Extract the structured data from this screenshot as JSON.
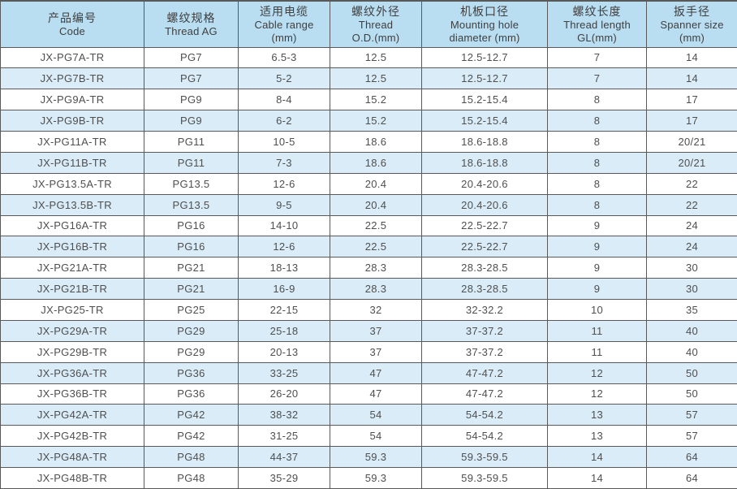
{
  "table": {
    "columns": [
      {
        "zh": "产品编号",
        "en": "Code"
      },
      {
        "zh": "螺纹规格",
        "en": "Thread  AG"
      },
      {
        "zh": "适用电缆",
        "en": "Cable range\n(mm)"
      },
      {
        "zh": "螺纹外径",
        "en": "Thread\nO.D.(mm)"
      },
      {
        "zh": "机板口径",
        "en": "Mounting hole\ndiameter (mm)"
      },
      {
        "zh": "螺纹长度",
        "en": "Thread length\nGL(mm)"
      },
      {
        "zh": "扳手径",
        "en": "Spanner size\n(mm)"
      }
    ],
    "rows": [
      [
        "JX-PG7A-TR",
        "PG7",
        "6.5-3",
        "12.5",
        "12.5-12.7",
        "7",
        "14"
      ],
      [
        "JX-PG7B-TR",
        "PG7",
        "5-2",
        "12.5",
        "12.5-12.7",
        "7",
        "14"
      ],
      [
        "JX-PG9A-TR",
        "PG9",
        "8-4",
        "15.2",
        "15.2-15.4",
        "8",
        "17"
      ],
      [
        "JX-PG9B-TR",
        "PG9",
        "6-2",
        "15.2",
        "15.2-15.4",
        "8",
        "17"
      ],
      [
        "JX-PG11A-TR",
        "PG11",
        "10-5",
        "18.6",
        "18.6-18.8",
        "8",
        "20/21"
      ],
      [
        "JX-PG11B-TR",
        "PG11",
        "7-3",
        "18.6",
        "18.6-18.8",
        "8",
        "20/21"
      ],
      [
        "JX-PG13.5A-TR",
        "PG13.5",
        "12-6",
        "20.4",
        "20.4-20.6",
        "8",
        "22"
      ],
      [
        "JX-PG13.5B-TR",
        "PG13.5",
        "9-5",
        "20.4",
        "20.4-20.6",
        "8",
        "22"
      ],
      [
        "JX-PG16A-TR",
        "PG16",
        "14-10",
        "22.5",
        "22.5-22.7",
        "9",
        "24"
      ],
      [
        "JX-PG16B-TR",
        "PG16",
        "12-6",
        "22.5",
        "22.5-22.7",
        "9",
        "24"
      ],
      [
        "JX-PG21A-TR",
        "PG21",
        "18-13",
        "28.3",
        "28.3-28.5",
        "9",
        "30"
      ],
      [
        "JX-PG21B-TR",
        "PG21",
        "16-9",
        "28.3",
        "28.3-28.5",
        "9",
        "30"
      ],
      [
        "JX-PG25-TR",
        "PG25",
        "22-15",
        "32",
        "32-32.2",
        "10",
        "35"
      ],
      [
        "JX-PG29A-TR",
        "PG29",
        "25-18",
        "37",
        "37-37.2",
        "11",
        "40"
      ],
      [
        "JX-PG29B-TR",
        "PG29",
        "20-13",
        "37",
        "37-37.2",
        "11",
        "40"
      ],
      [
        "JX-PG36A-TR",
        "PG36",
        "33-25",
        "47",
        "47-47.2",
        "12",
        "50"
      ],
      [
        "JX-PG36B-TR",
        "PG36",
        "26-20",
        "47",
        "47-47.2",
        "12",
        "50"
      ],
      [
        "JX-PG42A-TR",
        "PG42",
        "38-32",
        "54",
        "54-54.2",
        "13",
        "57"
      ],
      [
        "JX-PG42B-TR",
        "PG42",
        "31-25",
        "54",
        "54-54.2",
        "13",
        "57"
      ],
      [
        "JX-PG48A-TR",
        "PG48",
        "44-37",
        "59.3",
        "59.3-59.5",
        "14",
        "64"
      ],
      [
        "JX-PG48B-TR",
        "PG48",
        "35-29",
        "59.3",
        "59.3-59.5",
        "14",
        "64"
      ]
    ]
  },
  "colors": {
    "header_bg": "#b9ddf1",
    "row_bg": "#ffffff",
    "row_alt_bg": "#d9ecf8",
    "border": "#595959",
    "header_text": "#3f3f3f",
    "text": "#4f4f4f"
  }
}
